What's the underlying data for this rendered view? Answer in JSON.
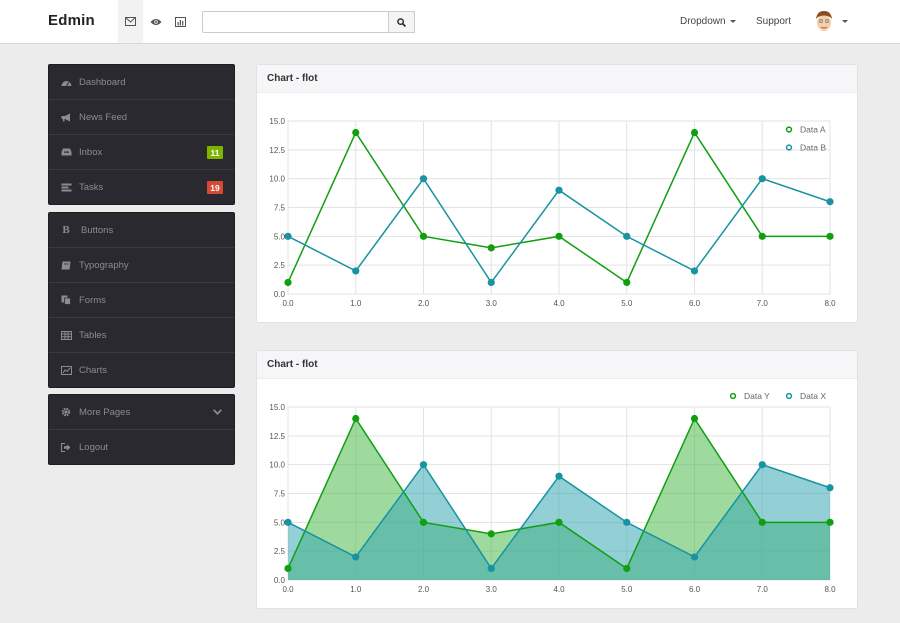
{
  "navbar": {
    "brand": "Edmin",
    "icons": [
      "envelope-icon",
      "eye-icon",
      "bar-chart-icon"
    ],
    "search_placeholder": "",
    "dropdown_label": "Dropdown",
    "support_label": "Support"
  },
  "sidebar": {
    "group1": [
      {
        "label": "Dashboard",
        "icon": "dashboard-icon"
      },
      {
        "label": "News Feed",
        "icon": "bullhorn-icon"
      },
      {
        "label": "Inbox",
        "icon": "inbox-icon",
        "badge": "11",
        "badge_color": "#7cb500"
      },
      {
        "label": "Tasks",
        "icon": "tasks-icon",
        "badge": "19",
        "badge_color": "#d54b32"
      }
    ],
    "group2": [
      {
        "label": "Buttons",
        "icon": "bold-icon"
      },
      {
        "label": "Typography",
        "icon": "book-icon"
      },
      {
        "label": "Forms",
        "icon": "paste-icon"
      },
      {
        "label": "Tables",
        "icon": "table-icon"
      },
      {
        "label": "Charts",
        "icon": "chart-icon"
      }
    ],
    "group3": [
      {
        "label": "More Pages",
        "icon": "cog-icon"
      },
      {
        "label": "Logout",
        "icon": "signout-icon"
      }
    ]
  },
  "panels": [
    {
      "title": "Chart - flot"
    },
    {
      "title": "Chart - flot"
    }
  ],
  "chart_data": [
    {
      "type": "line",
      "x": [
        0,
        1,
        2,
        3,
        4,
        5,
        6,
        7,
        8
      ],
      "x_tick_labels": [
        "0.0",
        "1.0",
        "2.0",
        "3.0",
        "4.0",
        "5.0",
        "6.0",
        "7.0",
        "8.0"
      ],
      "y_tick_labels": [
        "0.0",
        "2.5",
        "5.0",
        "7.5",
        "10.0",
        "12.5",
        "15.0"
      ],
      "ylim": [
        0,
        15
      ],
      "xlim": [
        0,
        8
      ],
      "grid": true,
      "legend_position": "top-right",
      "series": [
        {
          "name": "Data A",
          "color": "#119f11",
          "values": [
            1,
            14,
            5,
            4,
            5,
            1,
            14,
            5,
            5
          ]
        },
        {
          "name": "Data B",
          "color": "#1793a2",
          "values": [
            5,
            2,
            10,
            1,
            9,
            5,
            2,
            10,
            8
          ]
        }
      ]
    },
    {
      "type": "area",
      "x": [
        0,
        1,
        2,
        3,
        4,
        5,
        6,
        7,
        8
      ],
      "x_tick_labels": [
        "0.0",
        "1.0",
        "2.0",
        "3.0",
        "4.0",
        "5.0",
        "6.0",
        "7.0",
        "8.0"
      ],
      "y_tick_labels": [
        "0.0",
        "2.5",
        "5.0",
        "7.5",
        "10.0",
        "12.5",
        "15.0"
      ],
      "ylim": [
        0,
        15
      ],
      "xlim": [
        0,
        8
      ],
      "grid": true,
      "legend_position": "top-right",
      "series": [
        {
          "name": "Data Y",
          "color": "#119f11",
          "fill": "#4fbb4f",
          "values": [
            1,
            14,
            5,
            4,
            5,
            1,
            14,
            5,
            5
          ]
        },
        {
          "name": "Data X",
          "color": "#1793a2",
          "fill": "#3aa9b4",
          "values": [
            5,
            2,
            10,
            1,
            9,
            5,
            2,
            10,
            8
          ]
        }
      ]
    }
  ]
}
